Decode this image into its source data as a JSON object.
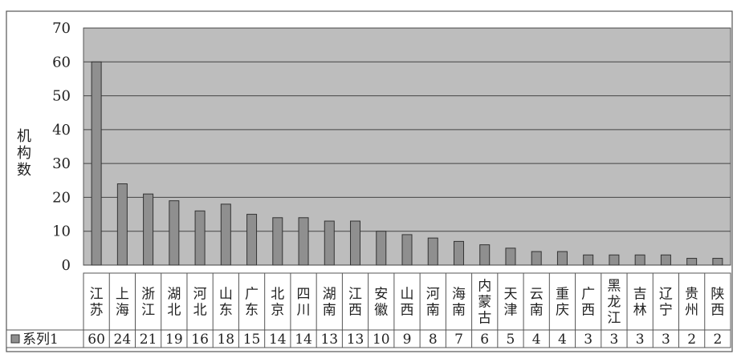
{
  "chart_data": {
    "type": "bar",
    "title": "",
    "xlabel": "",
    "ylabel": "机构数",
    "ylim": [
      0,
      70
    ],
    "yticks": [
      0,
      10,
      20,
      30,
      40,
      50,
      60,
      70
    ],
    "grid": true,
    "legend_position": "bottom-left (data table)",
    "categories": [
      "江苏",
      "上海",
      "浙江",
      "湖北",
      "河北",
      "山东",
      "广东",
      "北京",
      "四川",
      "湖南",
      "江西",
      "安徽",
      "山西",
      "河南",
      "海南",
      "内蒙古",
      "天津",
      "云南",
      "重庆",
      "广西",
      "黑龙江",
      "吉林",
      "辽宁",
      "贵州",
      "陕西"
    ],
    "series": [
      {
        "name": "系列1",
        "values": [
          60,
          24,
          21,
          19,
          16,
          18,
          15,
          14,
          14,
          13,
          13,
          10,
          9,
          8,
          7,
          6,
          5,
          4,
          4,
          3,
          3,
          3,
          3,
          2,
          2
        ]
      }
    ]
  },
  "colors": {
    "plot_background": "#bdbdbd",
    "bar_fill": "#8f8f8f",
    "bar_stroke": "#333333",
    "grid_line": "#444444",
    "frame": "#555555"
  }
}
